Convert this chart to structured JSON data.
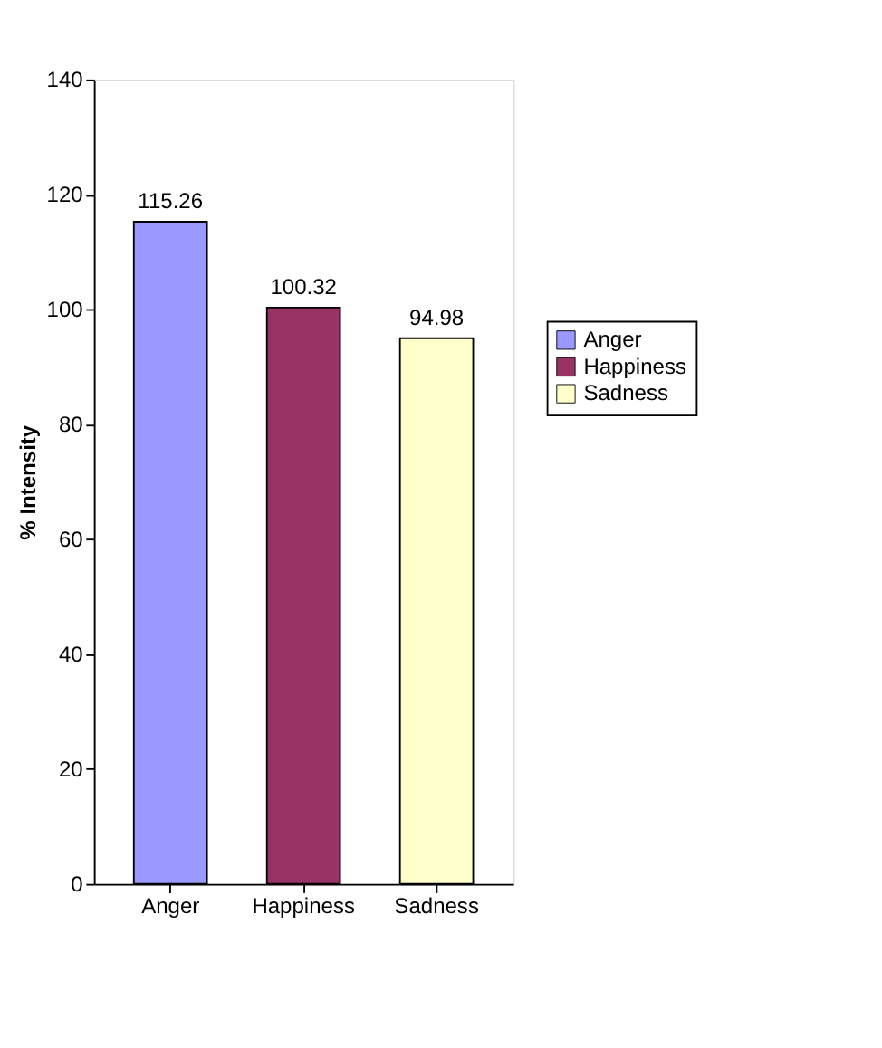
{
  "chart_data": {
    "type": "bar",
    "ylabel": "% Intensity",
    "categories": [
      "Anger",
      "Happiness",
      "Sadness"
    ],
    "series": [
      {
        "name": "Anger",
        "color": "#9999ff",
        "values": [
          115.26,
          null,
          null
        ]
      },
      {
        "name": "Happiness",
        "color": "#993366",
        "values": [
          null,
          100.32,
          null
        ]
      },
      {
        "name": "Sadness",
        "color": "#ffffcc",
        "values": [
          null,
          null,
          94.98
        ]
      }
    ],
    "ylim": [
      0,
      140
    ],
    "yticks": [
      0,
      20,
      40,
      60,
      80,
      100,
      120,
      140
    ],
    "grid": false,
    "legend": "right",
    "data_labels": true
  }
}
